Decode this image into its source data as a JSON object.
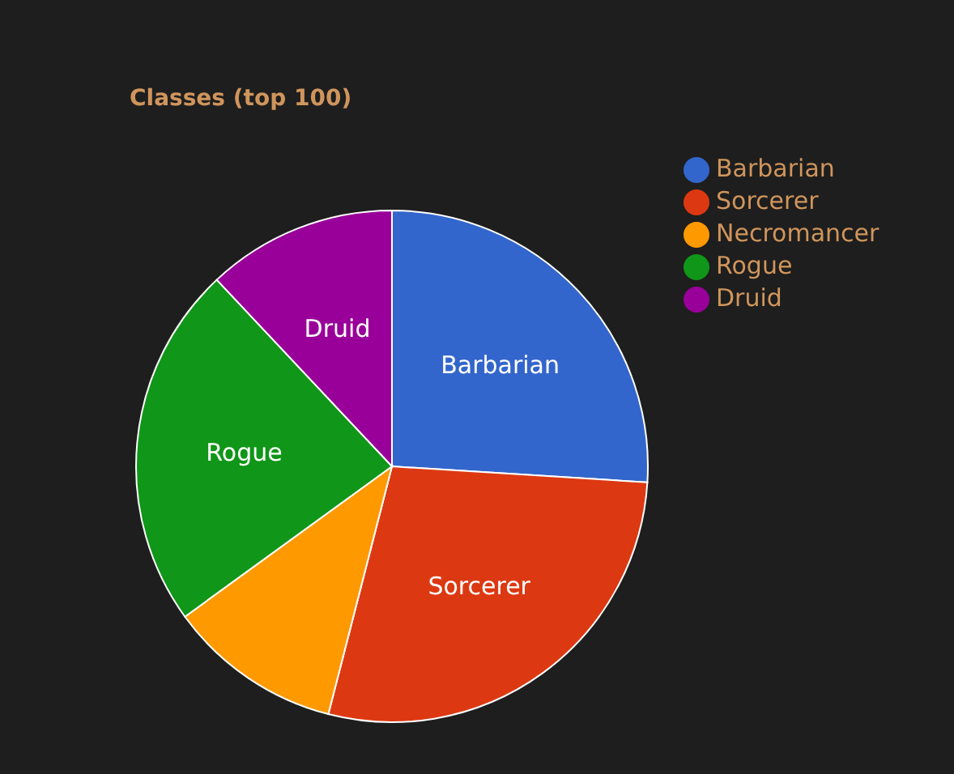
{
  "chart_data": {
    "type": "pie",
    "title": "Classes (top 100)",
    "categories": [
      "Barbarian",
      "Sorcerer",
      "Necromancer",
      "Rogue",
      "Druid"
    ],
    "values": [
      26,
      28,
      11,
      23,
      12
    ],
    "colors": [
      "#3366cc",
      "#dc3912",
      "#ff9900",
      "#109618",
      "#990099"
    ],
    "legend": "right"
  }
}
